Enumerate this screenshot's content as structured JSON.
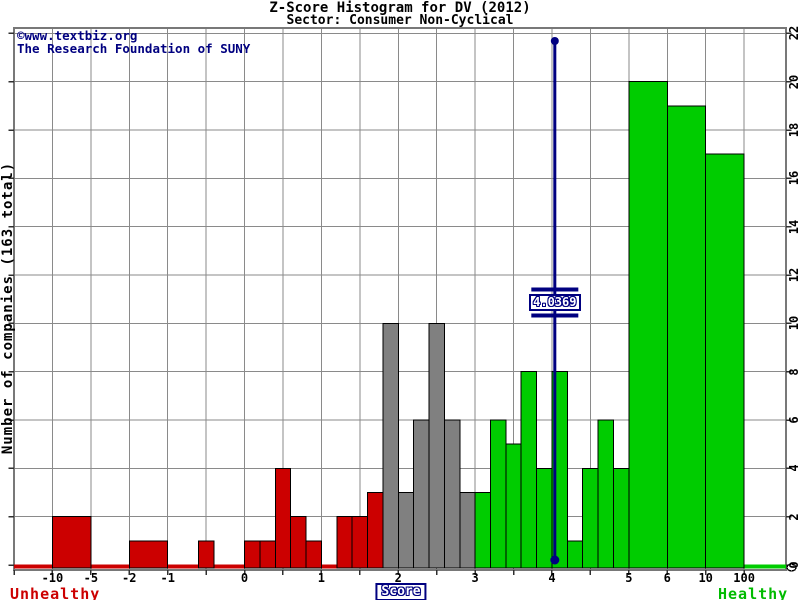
{
  "page": {
    "title": "Z-Score Histogram for DV (2012)",
    "subtitle": "Sector: Consumer Non-Cyclical"
  },
  "watermark": {
    "line1": "©www.textbiz.org",
    "line2": "The Research Foundation of SUNY"
  },
  "axes": {
    "y_label": "Number of companies (163 total)",
    "x_label": "Score",
    "left_caption": "Unhealthy",
    "right_caption": "Healthy",
    "x_ticks": [
      "-10",
      "-5",
      "-2",
      "-1",
      "0",
      "1",
      "2",
      "3",
      "4",
      "5",
      "6",
      "10",
      "100"
    ],
    "y_ticks": [
      "0",
      "2",
      "4",
      "6",
      "8",
      "10",
      "12",
      "14",
      "16",
      "18",
      "20",
      "22"
    ]
  },
  "marker": {
    "label": "4.0369"
  },
  "colors": {
    "distress": "#cc0000",
    "grey_zone": "#808080",
    "safe": "#00cc00",
    "accent": "#000080",
    "grid": "#8a8a8a",
    "border": "#787878",
    "tick": "#303030"
  },
  "chart_data": {
    "type": "bar",
    "title": "Z-Score Histogram for DV (2012)",
    "subtitle": "Sector: Consumer Non-Cyclical",
    "xlabel": "Score",
    "ylabel": "Number of companies (163 total)",
    "total_companies": 163,
    "ylim": [
      0,
      22
    ],
    "y_tick_values": [
      0,
      2,
      4,
      6,
      8,
      10,
      12,
      14,
      16,
      18,
      20,
      22
    ],
    "x_tick_values": [
      -10,
      -5,
      -2,
      -1,
      0,
      1,
      2,
      3,
      4,
      5,
      6,
      10,
      100
    ],
    "marker_value": 4.0369,
    "zone_boundaries": {
      "distress_below": 1.8,
      "safe_above": 3.0
    },
    "bins": [
      {
        "from": -10,
        "to": -5,
        "count": 2,
        "zone": "distress"
      },
      {
        "from": -2,
        "to": -1,
        "count": 1,
        "zone": "distress"
      },
      {
        "from": -0.6,
        "to": -0.4,
        "count": 1,
        "zone": "distress"
      },
      {
        "from": 0,
        "to": 0.2,
        "count": 1,
        "zone": "distress"
      },
      {
        "from": 0.2,
        "to": 0.4,
        "count": 1,
        "zone": "distress"
      },
      {
        "from": 0.4,
        "to": 0.6,
        "count": 4,
        "zone": "distress"
      },
      {
        "from": 0.6,
        "to": 0.8,
        "count": 2,
        "zone": "distress"
      },
      {
        "from": 0.8,
        "to": 1,
        "count": 1,
        "zone": "distress"
      },
      {
        "from": 1.2,
        "to": 1.4,
        "count": 2,
        "zone": "distress"
      },
      {
        "from": 1.4,
        "to": 1.6,
        "count": 2,
        "zone": "distress"
      },
      {
        "from": 1.6,
        "to": 1.8,
        "count": 3,
        "zone": "distress"
      },
      {
        "from": 1.8,
        "to": 2,
        "count": 10,
        "zone": "grey_zone"
      },
      {
        "from": 2,
        "to": 2.2,
        "count": 3,
        "zone": "grey_zone"
      },
      {
        "from": 2.2,
        "to": 2.4,
        "count": 6,
        "zone": "grey_zone"
      },
      {
        "from": 2.4,
        "to": 2.6,
        "count": 10,
        "zone": "grey_zone"
      },
      {
        "from": 2.6,
        "to": 2.8,
        "count": 6,
        "zone": "grey_zone"
      },
      {
        "from": 2.8,
        "to": 3,
        "count": 3,
        "zone": "grey_zone"
      },
      {
        "from": 3,
        "to": 3.2,
        "count": 3,
        "zone": "safe"
      },
      {
        "from": 3.2,
        "to": 3.4,
        "count": 6,
        "zone": "safe"
      },
      {
        "from": 3.4,
        "to": 3.6,
        "count": 5,
        "zone": "safe"
      },
      {
        "from": 3.6,
        "to": 3.8,
        "count": 8,
        "zone": "safe"
      },
      {
        "from": 3.8,
        "to": 4,
        "count": 4,
        "zone": "safe"
      },
      {
        "from": 4,
        "to": 4.2,
        "count": 8,
        "zone": "safe"
      },
      {
        "from": 4.2,
        "to": 4.4,
        "count": 1,
        "zone": "safe"
      },
      {
        "from": 4.4,
        "to": 4.6,
        "count": 4,
        "zone": "safe"
      },
      {
        "from": 4.6,
        "to": 4.8,
        "count": 6,
        "zone": "safe"
      },
      {
        "from": 4.8,
        "to": 5,
        "count": 4,
        "zone": "safe"
      },
      {
        "from": 5,
        "to": 6,
        "count": 20,
        "zone": "safe"
      },
      {
        "from": 6,
        "to": 10,
        "count": 19,
        "zone": "safe"
      },
      {
        "from": 10,
        "to": 100,
        "count": 17,
        "zone": "safe"
      }
    ]
  }
}
